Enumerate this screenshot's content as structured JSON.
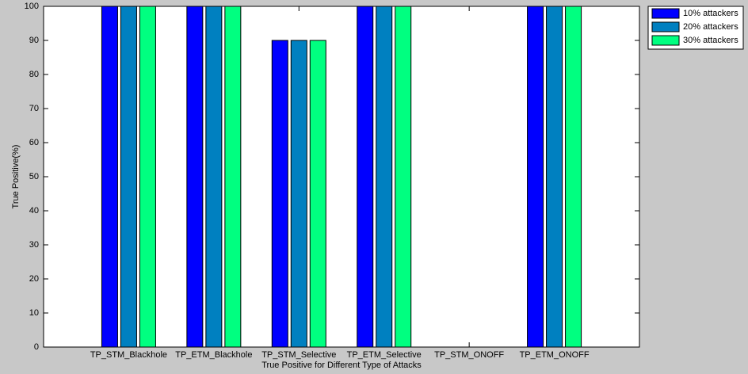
{
  "chart_data": {
    "type": "bar",
    "x_label": "True Positive for Different Type of Attacks",
    "y_label": "True Positive(%)",
    "categories": [
      "TP_STM_Blackhole",
      "TP_ETM_Blackhole",
      "TP_STM_Selective",
      "TP_ETM_Selective",
      "TP_STM_ONOFF",
      "TP_ETM_ONOFF"
    ],
    "series": [
      {
        "name": "10% attackers",
        "color": "#0000ff",
        "values": [
          100,
          100,
          90,
          100,
          0,
          100
        ]
      },
      {
        "name": "20% attackers",
        "color": "#0080c0",
        "values": [
          100,
          100,
          90,
          100,
          0,
          100
        ]
      },
      {
        "name": "30% attackers",
        "color": "#00ff80",
        "values": [
          100,
          100,
          90,
          100,
          0,
          100
        ]
      }
    ],
    "ylim": [
      0,
      100
    ],
    "yticks": [
      0,
      10,
      20,
      30,
      40,
      50,
      60,
      70,
      80,
      90,
      100
    ],
    "legend": "top-right",
    "grid": false
  }
}
